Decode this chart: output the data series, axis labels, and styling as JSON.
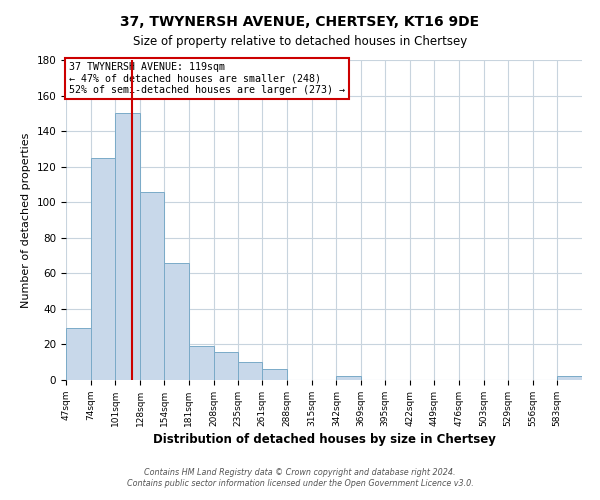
{
  "title": "37, TWYNERSH AVENUE, CHERTSEY, KT16 9DE",
  "subtitle": "Size of property relative to detached houses in Chertsey",
  "xlabel": "Distribution of detached houses by size in Chertsey",
  "ylabel": "Number of detached properties",
  "bar_edges": [
    47,
    74,
    101,
    128,
    154,
    181,
    208,
    235,
    261,
    288,
    315,
    342,
    369,
    395,
    422,
    449,
    476,
    503,
    529,
    556,
    583
  ],
  "bar_heights": [
    29,
    125,
    150,
    106,
    66,
    19,
    16,
    10,
    6,
    0,
    0,
    2,
    0,
    0,
    0,
    0,
    0,
    0,
    0,
    0,
    2
  ],
  "bar_color": "#c8d8ea",
  "bar_edge_color": "#7aaac8",
  "vline_x": 119,
  "vline_color": "#cc0000",
  "ylim": [
    0,
    180
  ],
  "annotation_text_line1": "37 TWYNERSH AVENUE: 119sqm",
  "annotation_text_line2": "← 47% of detached houses are smaller (248)",
  "annotation_text_line3": "52% of semi-detached houses are larger (273) →",
  "footer_line1": "Contains HM Land Registry data © Crown copyright and database right 2024.",
  "footer_line2": "Contains public sector information licensed under the Open Government Licence v3.0.",
  "tick_labels": [
    "47sqm",
    "74sqm",
    "101sqm",
    "128sqm",
    "154sqm",
    "181sqm",
    "208sqm",
    "235sqm",
    "261sqm",
    "288sqm",
    "315sqm",
    "342sqm",
    "369sqm",
    "395sqm",
    "422sqm",
    "449sqm",
    "476sqm",
    "503sqm",
    "529sqm",
    "556sqm",
    "583sqm"
  ],
  "yticks": [
    0,
    20,
    40,
    60,
    80,
    100,
    120,
    140,
    160,
    180
  ],
  "background_color": "#ffffff",
  "grid_color": "#c8d4de"
}
